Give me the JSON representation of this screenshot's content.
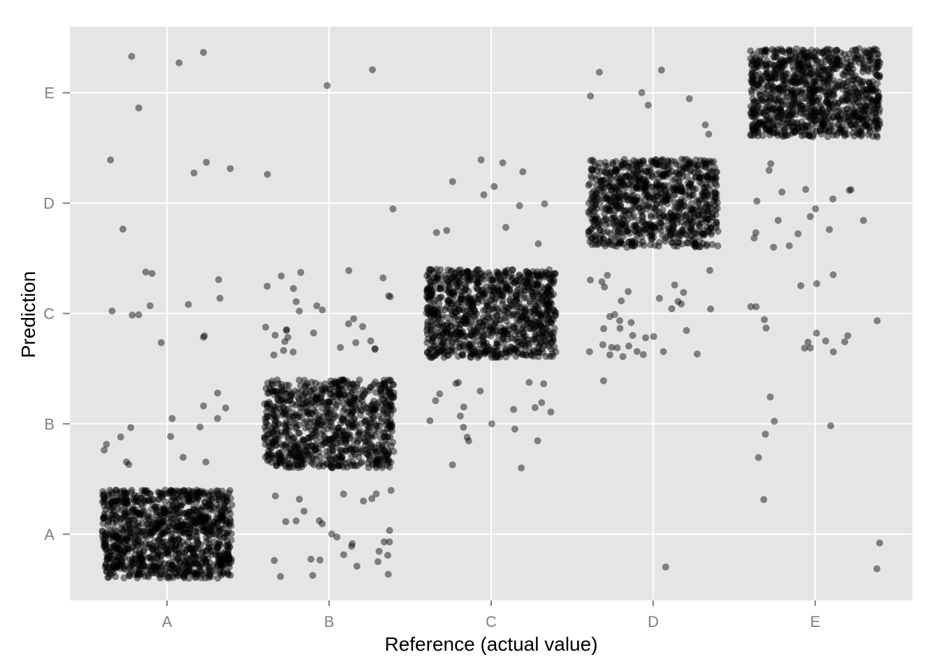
{
  "chart_data": {
    "type": "scatter",
    "jittered_categorical": true,
    "xlabel": "Reference (actual value)",
    "ylabel": "Prediction",
    "x_categories": [
      "A",
      "B",
      "C",
      "D",
      "E"
    ],
    "y_categories": [
      "A",
      "B",
      "C",
      "D",
      "E"
    ],
    "grid": true,
    "legend": "none",
    "background_color": "#e5e5e5",
    "grid_color": "#ffffff",
    "point_color": "#000000",
    "point_opacity": 0.45,
    "jitter": 0.4,
    "counts": {
      "A": {
        "A": 1100,
        "B": 15,
        "C": 12,
        "D": 5,
        "E": 4
      },
      "B": {
        "A": 30,
        "B": 840,
        "C": 30,
        "D": 2,
        "E": 2
      },
      "C": {
        "A": 0,
        "B": 22,
        "C": 960,
        "D": 12,
        "E": 0
      },
      "D": {
        "A": 1,
        "B": 1,
        "C": 35,
        "D": 870,
        "E": 8
      },
      "E": {
        "A": 3,
        "B": 5,
        "C": 16,
        "D": 18,
        "E": 1000
      }
    }
  }
}
